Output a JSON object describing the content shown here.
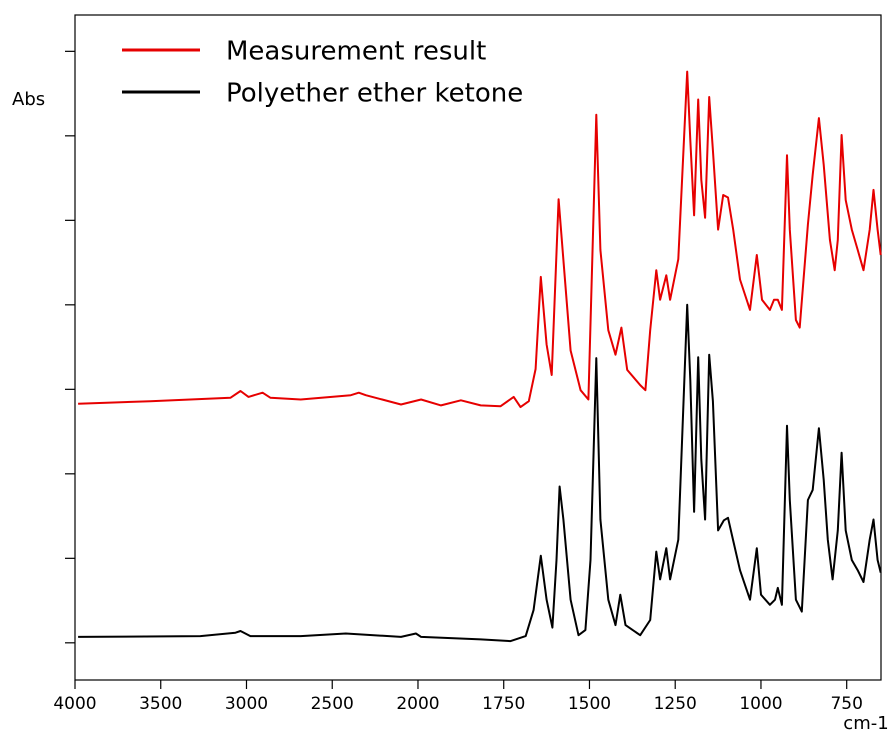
{
  "chart_data": {
    "type": "line",
    "ylabel": "Abs",
    "xlabel": "cm-1",
    "xlim": [
      4000,
      650
    ],
    "xticks": [
      4000,
      3500,
      3000,
      2500,
      2000,
      1750,
      1500,
      1250,
      1000,
      750
    ],
    "ylim": [
      -0.44,
      7.43
    ],
    "yticks": [
      0,
      1,
      2,
      3,
      4,
      5,
      6,
      7
    ],
    "legend": "top-left",
    "series": [
      {
        "name": "Measurement result",
        "color": "#e60000",
        "x": [
          3982,
          3561,
          3094,
          3035,
          2988,
          2906,
          2860,
          2684,
          2392,
          2345,
          2304,
          2099,
          1991,
          1933,
          1875,
          1817,
          1759,
          1721,
          1701,
          1677,
          1657,
          1642,
          1625,
          1610,
          1590,
          1576,
          1555,
          1526,
          1503,
          1480,
          1468,
          1445,
          1424,
          1407,
          1390,
          1352,
          1337,
          1323,
          1305,
          1294,
          1276,
          1265,
          1241,
          1215,
          1206,
          1195,
          1183,
          1174,
          1163,
          1151,
          1140,
          1125,
          1110,
          1096,
          1081,
          1061,
          1032,
          1012,
          997,
          974,
          962,
          951,
          939,
          924,
          916,
          898,
          887,
          863,
          849,
          831,
          817,
          799,
          785,
          776,
          765,
          753,
          735,
          718,
          701,
          683,
          672,
          660,
          651
        ],
        "values": [
          2.83,
          2.86,
          2.9,
          2.98,
          2.91,
          2.96,
          2.9,
          2.88,
          2.93,
          2.96,
          2.93,
          2.82,
          2.88,
          2.81,
          2.87,
          2.81,
          2.8,
          2.91,
          2.79,
          2.86,
          3.24,
          4.33,
          3.53,
          3.17,
          5.25,
          4.53,
          3.46,
          2.99,
          2.88,
          6.25,
          4.65,
          3.7,
          3.41,
          3.73,
          3.23,
          3.05,
          2.99,
          3.7,
          4.41,
          4.06,
          4.35,
          4.06,
          4.54,
          6.76,
          5.95,
          5.06,
          6.43,
          5.48,
          5.03,
          6.46,
          5.83,
          4.89,
          5.3,
          5.27,
          4.89,
          4.3,
          3.94,
          4.59,
          4.06,
          3.94,
          4.06,
          4.06,
          3.94,
          5.77,
          4.89,
          3.82,
          3.73,
          4.95,
          5.54,
          6.21,
          5.66,
          4.77,
          4.41,
          4.77,
          6.01,
          5.24,
          4.89,
          4.65,
          4.41,
          4.89,
          5.36,
          4.89,
          4.59
        ]
      },
      {
        "name": "Polyether ether ketone",
        "color": "#000000",
        "x": [
          3982,
          3269,
          3064,
          3035,
          2977,
          2684,
          2421,
          2099,
          2012,
          1991,
          1817,
          1730,
          1686,
          1663,
          1642,
          1625,
          1608,
          1596,
          1587,
          1576,
          1555,
          1532,
          1512,
          1497,
          1480,
          1468,
          1445,
          1424,
          1410,
          1395,
          1352,
          1323,
          1305,
          1294,
          1276,
          1265,
          1241,
          1215,
          1206,
          1195,
          1183,
          1174,
          1163,
          1151,
          1140,
          1125,
          1108,
          1096,
          1081,
          1061,
          1032,
          1012,
          1000,
          974,
          959,
          951,
          939,
          924,
          916,
          898,
          881,
          863,
          849,
          831,
          817,
          805,
          791,
          776,
          765,
          753,
          735,
          718,
          701,
          683,
          672,
          660,
          651
        ],
        "values": [
          0.07,
          0.08,
          0.12,
          0.14,
          0.08,
          0.08,
          0.11,
          0.07,
          0.11,
          0.07,
          0.04,
          0.02,
          0.08,
          0.39,
          1.03,
          0.51,
          0.18,
          0.98,
          1.85,
          1.46,
          0.51,
          0.09,
          0.15,
          0.98,
          3.37,
          1.46,
          0.51,
          0.21,
          0.57,
          0.21,
          0.09,
          0.27,
          1.08,
          0.75,
          1.12,
          0.75,
          1.22,
          4.0,
          3.11,
          1.55,
          3.38,
          2.17,
          1.46,
          3.41,
          2.86,
          1.33,
          1.45,
          1.48,
          1.21,
          0.86,
          0.51,
          1.12,
          0.57,
          0.45,
          0.51,
          0.65,
          0.45,
          2.57,
          1.69,
          0.51,
          0.37,
          1.69,
          1.81,
          2.54,
          1.93,
          1.22,
          0.75,
          1.33,
          2.25,
          1.33,
          0.98,
          0.86,
          0.72,
          1.22,
          1.46,
          0.98,
          0.83
        ]
      }
    ]
  }
}
